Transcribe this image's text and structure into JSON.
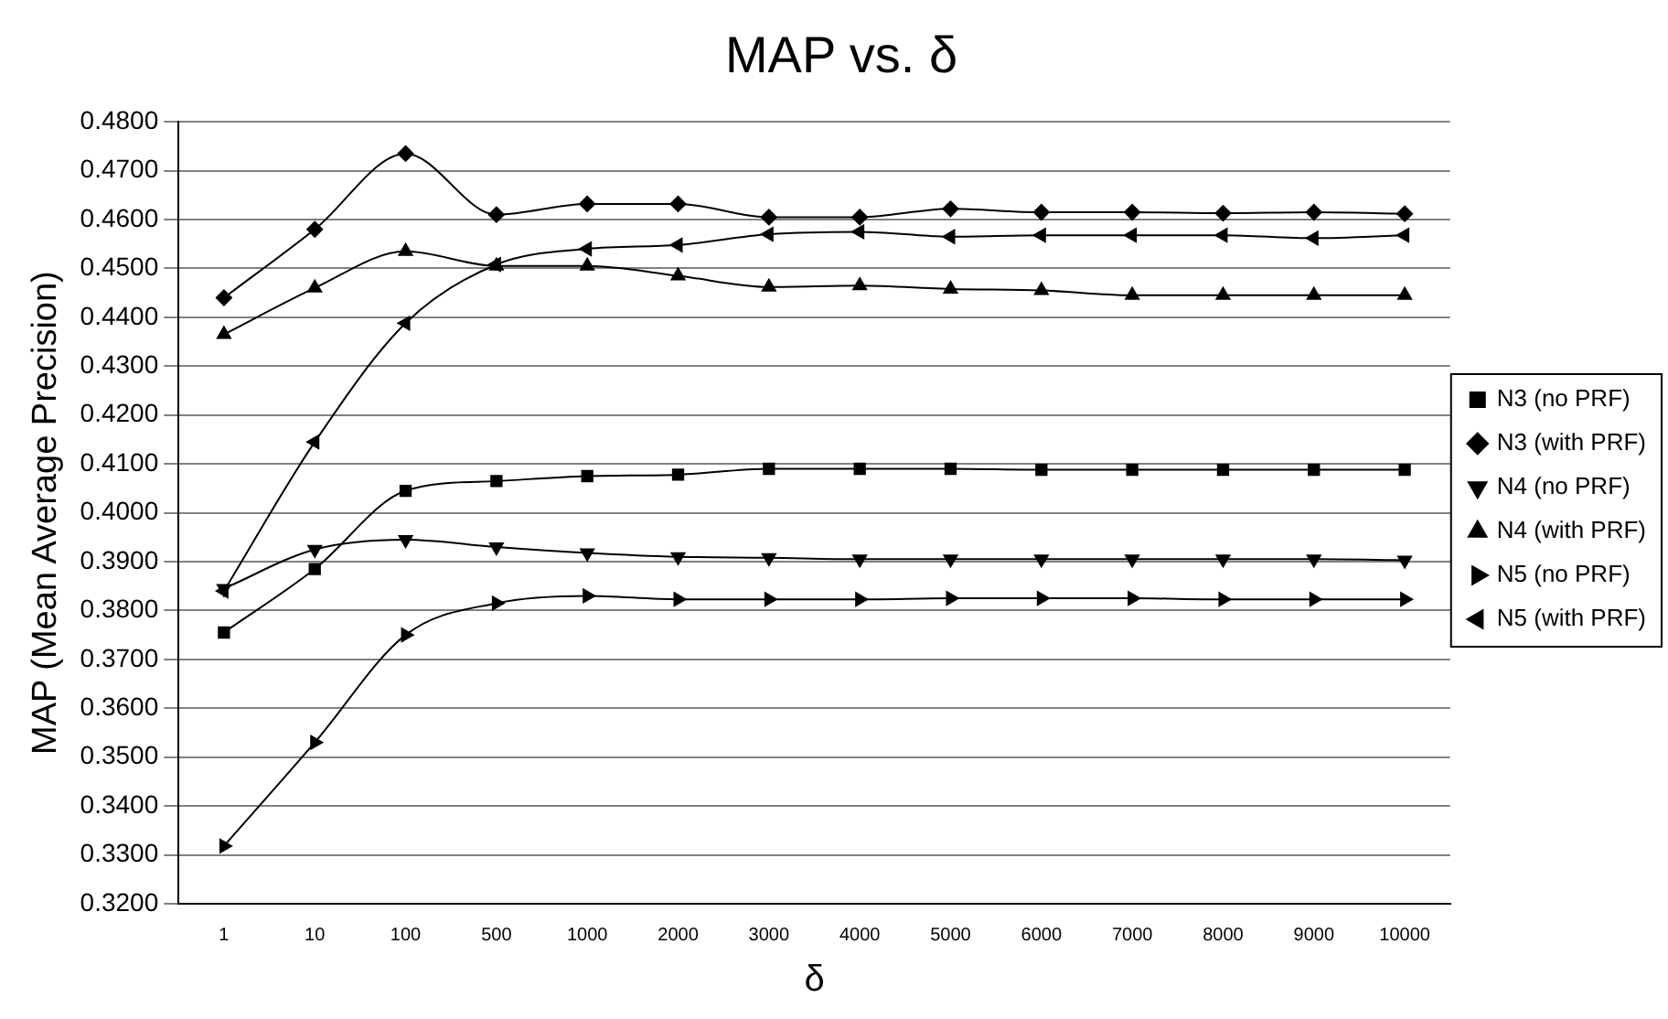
{
  "chart_data": {
    "type": "line",
    "title": "MAP vs. δ",
    "xlabel": "δ",
    "ylabel": "MAP (Mean Average Precision)",
    "categories": [
      "1",
      "10",
      "100",
      "500",
      "1000",
      "2000",
      "3000",
      "4000",
      "5000",
      "6000",
      "7000",
      "8000",
      "9000",
      "10000"
    ],
    "ylim": [
      0.32,
      0.48
    ],
    "yticks": [
      {
        "value": 0.32,
        "label": "0.3200"
      },
      {
        "value": 0.33,
        "label": "0.3300"
      },
      {
        "value": 0.34,
        "label": "0.3400"
      },
      {
        "value": 0.35,
        "label": "0.3500"
      },
      {
        "value": 0.36,
        "label": "0.3600"
      },
      {
        "value": 0.37,
        "label": "0.3700"
      },
      {
        "value": 0.38,
        "label": "0.3800"
      },
      {
        "value": 0.39,
        "label": "0.3900"
      },
      {
        "value": 0.4,
        "label": "0.4000"
      },
      {
        "value": 0.41,
        "label": "0.4100"
      },
      {
        "value": 0.42,
        "label": "0.4200"
      },
      {
        "value": 0.43,
        "label": "0.4300"
      },
      {
        "value": 0.44,
        "label": "0.4400"
      },
      {
        "value": 0.45,
        "label": "0.4500"
      },
      {
        "value": 0.46,
        "label": "0.4600"
      },
      {
        "value": 0.47,
        "label": "0.4700"
      },
      {
        "value": 0.48,
        "label": "0.4800"
      }
    ],
    "grid": "y",
    "legend": "right",
    "line_style": "solid",
    "series": [
      {
        "name": "N3 (no PRF)",
        "color": "#000000",
        "marker": "square",
        "values": [
          0.3755,
          0.3885,
          0.4045,
          0.4065,
          0.4075,
          0.4078,
          0.409,
          0.409,
          0.409,
          0.4088,
          0.4088,
          0.4088,
          0.4088,
          0.4088
        ]
      },
      {
        "name": "N3 (with PRF)",
        "color": "#000000",
        "marker": "diamond",
        "values": [
          0.444,
          0.458,
          0.4735,
          0.461,
          0.4632,
          0.4632,
          0.4605,
          0.4605,
          0.4622,
          0.4615,
          0.4615,
          0.4613,
          0.4615,
          0.4612
        ]
      },
      {
        "name": "N4 (no PRF)",
        "color": "#000000",
        "marker": "triangle-down",
        "values": [
          0.3845,
          0.3925,
          0.3945,
          0.393,
          0.3918,
          0.391,
          0.3908,
          0.3905,
          0.3905,
          0.3905,
          0.3905,
          0.3905,
          0.3905,
          0.3903
        ]
      },
      {
        "name": "N4 (with PRF)",
        "color": "#000000",
        "marker": "triangle",
        "values": [
          0.4365,
          0.446,
          0.4535,
          0.4505,
          0.4505,
          0.4485,
          0.4462,
          0.4465,
          0.4458,
          0.4455,
          0.4445,
          0.4445,
          0.4445,
          0.4445
        ]
      },
      {
        "name": "N5 (no PRF)",
        "color": "#000000",
        "marker": "triangle-right",
        "values": [
          0.3318,
          0.353,
          0.375,
          0.3815,
          0.383,
          0.3823,
          0.3823,
          0.3823,
          0.3825,
          0.3825,
          0.3825,
          0.3823,
          0.3823,
          0.3823
        ]
      },
      {
        "name": "N5 (with PRF)",
        "color": "#000000",
        "marker": "triangle-left",
        "values": [
          0.384,
          0.4145,
          0.4388,
          0.4508,
          0.454,
          0.4548,
          0.457,
          0.4575,
          0.4565,
          0.4568,
          0.4568,
          0.4568,
          0.4562,
          0.4568
        ]
      }
    ]
  }
}
